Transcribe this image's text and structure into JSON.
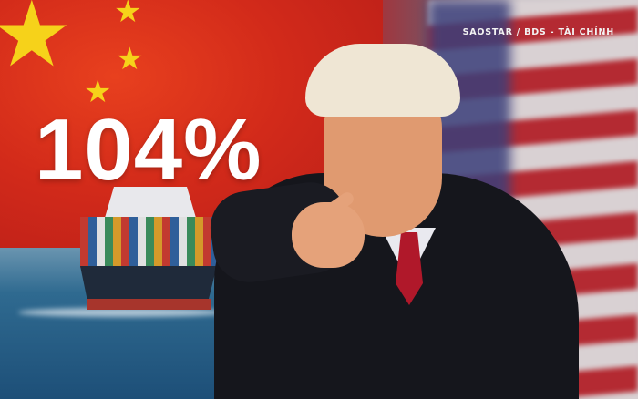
{
  "image": {
    "headline": "104%",
    "watermark": "SAOSTAR / BDS - TÀI CHÍNH",
    "colors": {
      "china_red": "#d22a1a",
      "star_yellow": "#f6d21a",
      "us_blue": "#3b3f7a",
      "tie_red": "#b0182a"
    },
    "icons": [
      "star-icon"
    ]
  }
}
